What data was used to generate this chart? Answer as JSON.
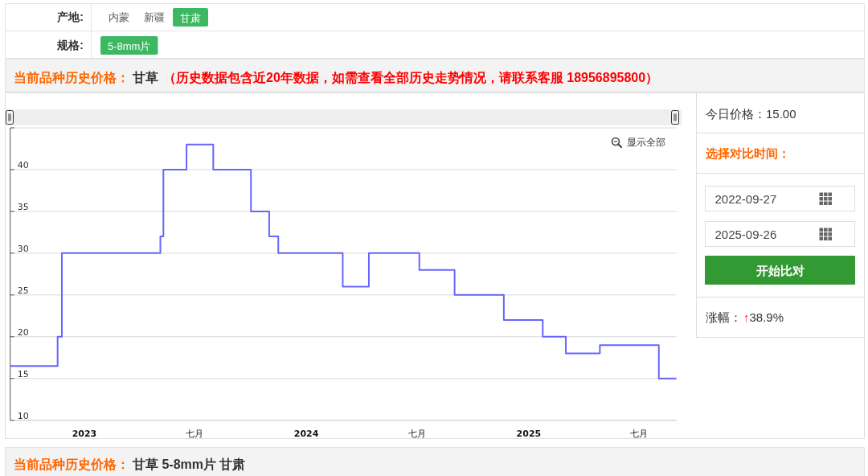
{
  "chart_data": [
    {
      "type": "other",
      "annotations": [
        "产地:",
        "内蒙",
        "新疆",
        "甘肃",
        "规格:",
        "5-8mm片"
      ]
    },
    {
      "type": "step",
      "title": "当前品种历史价格：",
      "subtitle": "甘草",
      "annotations": [
        "（历史数据包含近20年数据，如需查看全部历史走势情况，请联系客服 18956895800）",
        "显示全部"
      ],
      "x": [
        "2022-09-01",
        "2022-11-18",
        "2022-11-25",
        "2023-05-06",
        "2023-05-11",
        "2023-06-18",
        "2023-08-01",
        "2023-10-02",
        "2023-11-01",
        "2023-11-16",
        "2024-03-01",
        "2024-04-13",
        "2024-07-05",
        "2024-09-01",
        "2024-11-21",
        "2025-01-24",
        "2025-03-03",
        "2025-04-28",
        "2025-08-03",
        "2025-09-01"
      ],
      "series": [
        {
          "color": "#6666ff",
          "values": [
            16.5,
            20,
            30,
            32,
            40,
            43,
            40,
            35,
            32,
            30,
            26,
            30,
            28,
            25,
            22,
            20,
            18,
            19,
            15,
            15
          ]
        }
      ],
      "xlim": [
        "2022-09-01",
        "2025-09-01"
      ],
      "xticks": [
        {
          "value": "2023-01-01",
          "label": "2023"
        },
        {
          "value": "2023-07-01",
          "label": "七月"
        },
        {
          "value": "2024-01-01",
          "label": "2024"
        },
        {
          "value": "2024-07-01",
          "label": "七月"
        },
        {
          "value": "2025-01-01",
          "label": "2025"
        },
        {
          "value": "2025-07-01",
          "label": "七月"
        }
      ],
      "ylim": [
        10,
        45
      ],
      "yticks": [
        10,
        15,
        20,
        25,
        30,
        35,
        40,
        {
          "value": 45,
          "label": null
        }
      ],
      "grid": "y"
    },
    {
      "type": "other",
      "annotations": [
        "今日价格：15.00",
        "选择对比时间：",
        "2022-09-27",
        "2025-09-26",
        "开始比对",
        "涨幅：",
        "↑",
        "38.9%"
      ]
    },
    {
      "type": "other",
      "title": "当前品种历史价格：",
      "subtitle": "甘草 5-8mm片 甘肃"
    }
  ]
}
